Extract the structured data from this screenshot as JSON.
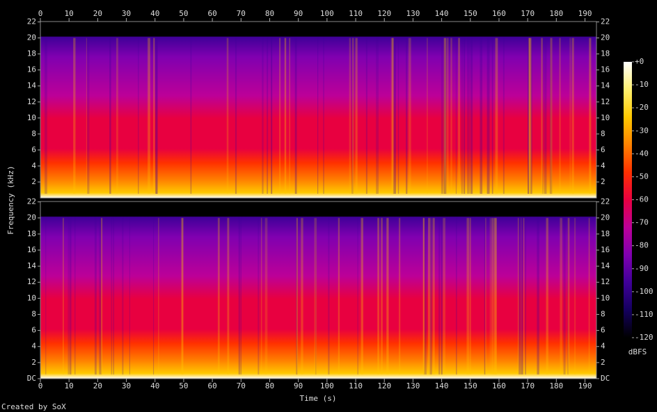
{
  "chart_data": {
    "type": "spectrogram",
    "xlabel": "Time (s)",
    "ylabel": "Frequency (kHz)",
    "xlim": [
      0,
      194
    ],
    "xticks": [
      0,
      10,
      20,
      30,
      40,
      50,
      60,
      70,
      80,
      90,
      100,
      110,
      120,
      130,
      140,
      150,
      160,
      170,
      180,
      190
    ],
    "channels": [
      {
        "ylim": [
          0,
          22.05
        ],
        "yticks": [
          2,
          4,
          6,
          8,
          10,
          12,
          14,
          16,
          18,
          20,
          22
        ]
      },
      {
        "ylim": [
          0,
          22.05
        ],
        "yticks": [
          {
            "value": 0,
            "label": "DC"
          },
          2,
          4,
          6,
          8,
          10,
          12,
          14,
          16,
          18,
          20,
          22
        ]
      }
    ],
    "colorbar": {
      "label": "dBFS",
      "lim": [
        -120,
        0
      ],
      "ticks": [
        {
          "value": 0,
          "label": "+0"
        },
        -10,
        -20,
        -30,
        -40,
        -50,
        -60,
        -70,
        -80,
        -90,
        -100,
        -110,
        -120
      ]
    },
    "colormap": [
      "#000000",
      "#14005e",
      "#3f0098",
      "#8000b0",
      "#bc0098",
      "#e80040",
      "#ff3000",
      "#ff8200",
      "#ffc800",
      "#fff070",
      "#ffffff"
    ]
  },
  "footer": "Created by SoX"
}
